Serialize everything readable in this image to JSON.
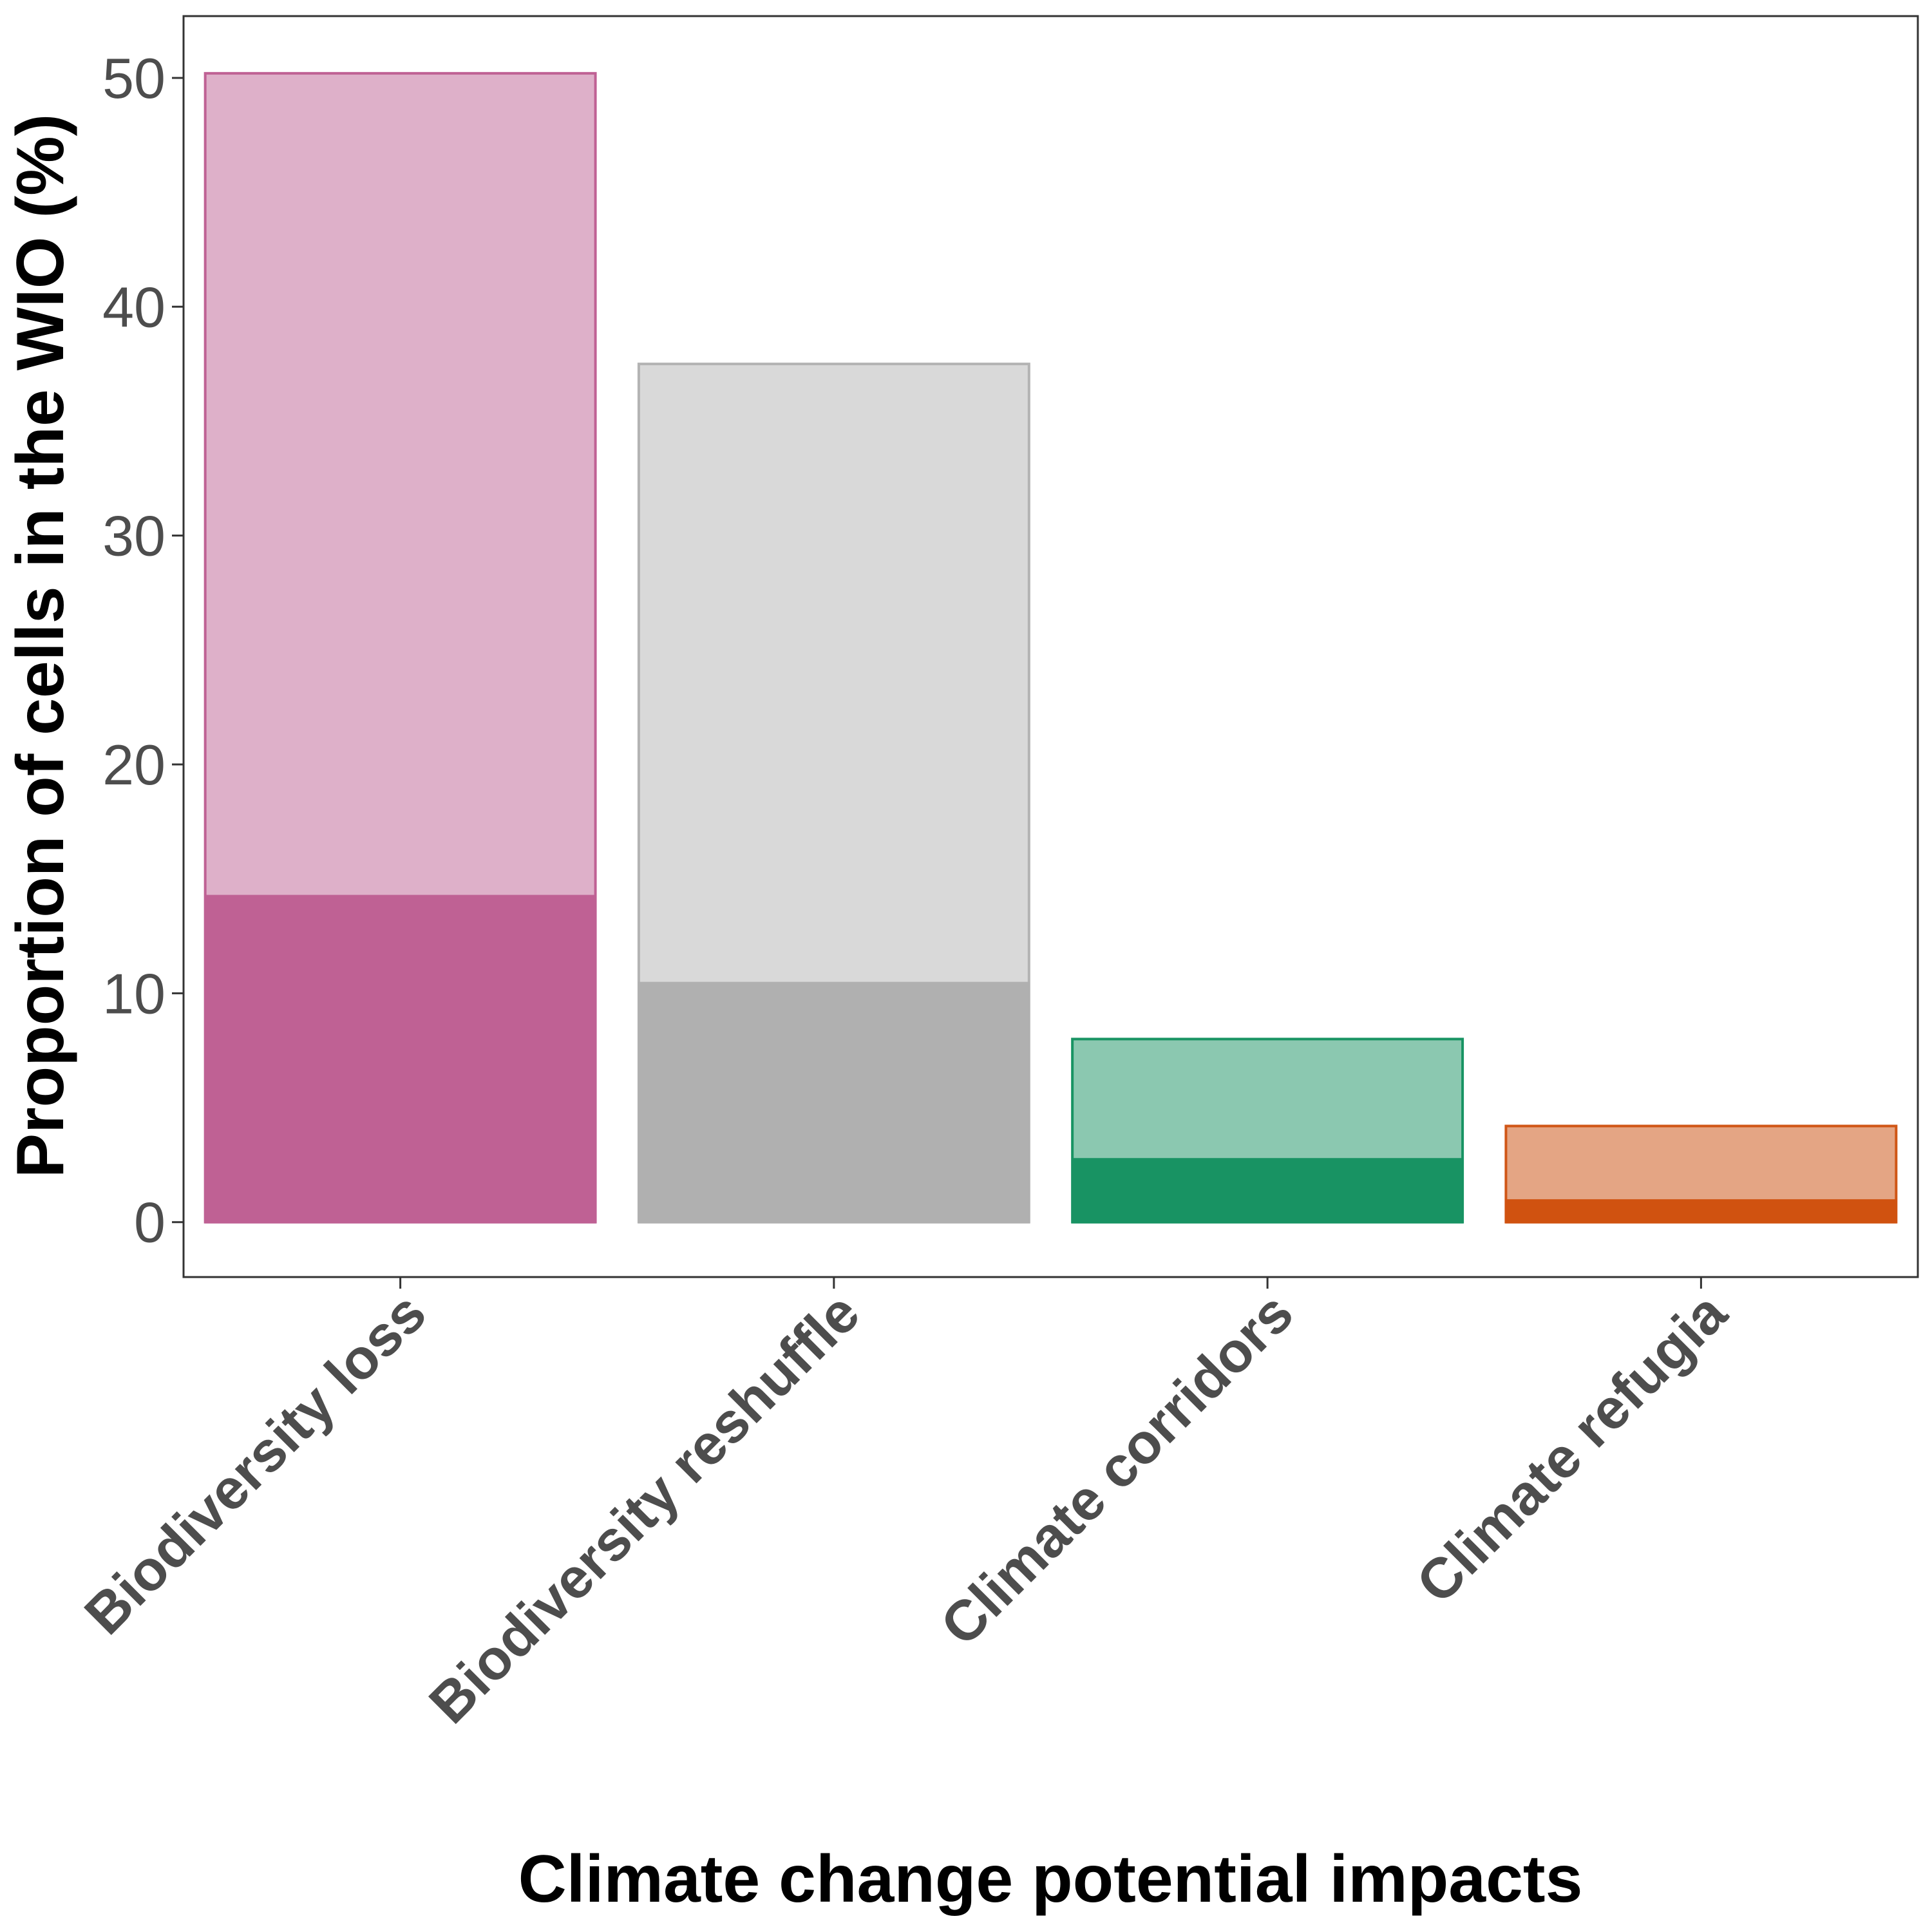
{
  "chart_data": {
    "type": "bar",
    "categories": [
      "Biodiversity loss",
      "Biodiversity reshuffle",
      "Climate corridors",
      "Climate refugia"
    ],
    "series": [
      {
        "values": [
          50.2,
          37.5,
          8.0,
          4.2
        ]
      },
      {
        "values": [
          14.3,
          10.5,
          2.8,
          1.0
        ]
      }
    ],
    "colors": {
      "outer_fill": [
        "#deb0c9",
        "#d9d9d9",
        "#8bc8b0",
        "#e4a584"
      ],
      "outer_stroke": [
        "#bf6194",
        "#b3b3b3",
        "#189363",
        "#d05616"
      ],
      "inner_fill": [
        "#bf6194",
        "#b0b0b0",
        "#189363",
        "#d05210"
      ]
    },
    "xlabel": "Climate change potential impacts",
    "ylabel": "Proportion of cells in the WIO (%)",
    "yticks": [
      0,
      10,
      20,
      30,
      40,
      50
    ],
    "ylim": [
      -2.4,
      52.7
    ],
    "grid": false,
    "legend": "none"
  }
}
